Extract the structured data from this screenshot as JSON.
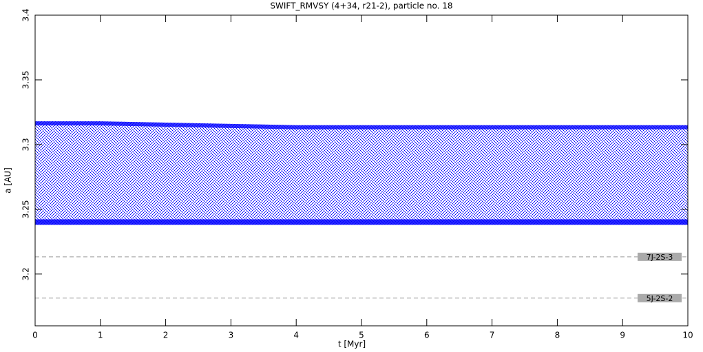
{
  "chart_data": {
    "type": "band",
    "title": "SWIFT_RMVSY (4+34, r21-2), particle no. 18",
    "xlabel": "t [Myr]",
    "ylabel": "a [AU]",
    "color": "#0000ff",
    "x": [
      0,
      1,
      2,
      3,
      4,
      5,
      6,
      7,
      8,
      9,
      10
    ],
    "ymax": [
      3.318,
      3.318,
      3.317,
      3.316,
      3.315,
      3.315,
      3.315,
      3.315,
      3.315,
      3.315,
      3.315
    ],
    "ymin": [
      3.238,
      3.238,
      3.238,
      3.238,
      3.238,
      3.238,
      3.238,
      3.238,
      3.238,
      3.238,
      3.238
    ],
    "xlim": [
      0,
      10
    ],
    "xticks": [
      0,
      1,
      2,
      3,
      4,
      5,
      6,
      7,
      8,
      9,
      10
    ],
    "ylim": [
      3.16,
      3.4
    ],
    "yticks": [
      3.2,
      3.25,
      3.3,
      3.35,
      3.4
    ],
    "resonances": [
      {
        "label": "7J-2S-3",
        "value": 3.2133
      },
      {
        "label": "5J-2S-2",
        "value": 3.1814
      }
    ]
  }
}
